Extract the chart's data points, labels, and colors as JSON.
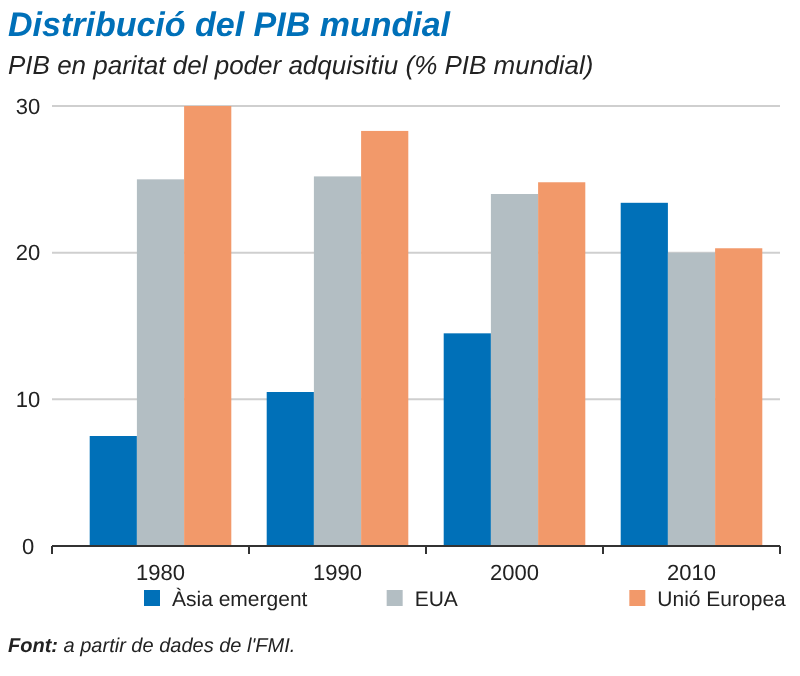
{
  "chart_data": {
    "type": "bar",
    "title": "Distribució del PIB mundial",
    "subtitle": "PIB en paritat del poder adquisitiu (% PIB mundial)",
    "categories": [
      "1980",
      "1990",
      "2000",
      "2010"
    ],
    "series": [
      {
        "name": "Àsia emergent",
        "color": "#0070b8",
        "values": [
          7.5,
          10.5,
          14.5,
          23.4
        ]
      },
      {
        "name": "EUA",
        "color": "#b3bec3",
        "values": [
          25.0,
          25.2,
          24.0,
          20.0
        ]
      },
      {
        "name": "Unió Europea",
        "color": "#f2996a",
        "values": [
          30.0,
          28.3,
          24.8,
          20.3
        ]
      }
    ],
    "ylim": [
      0,
      30
    ],
    "yticks": [
      0,
      10,
      20,
      30
    ],
    "grid": "y",
    "legend": "bottom",
    "annotations": [
      "Font: a partir de dades de l'FMI."
    ]
  }
}
